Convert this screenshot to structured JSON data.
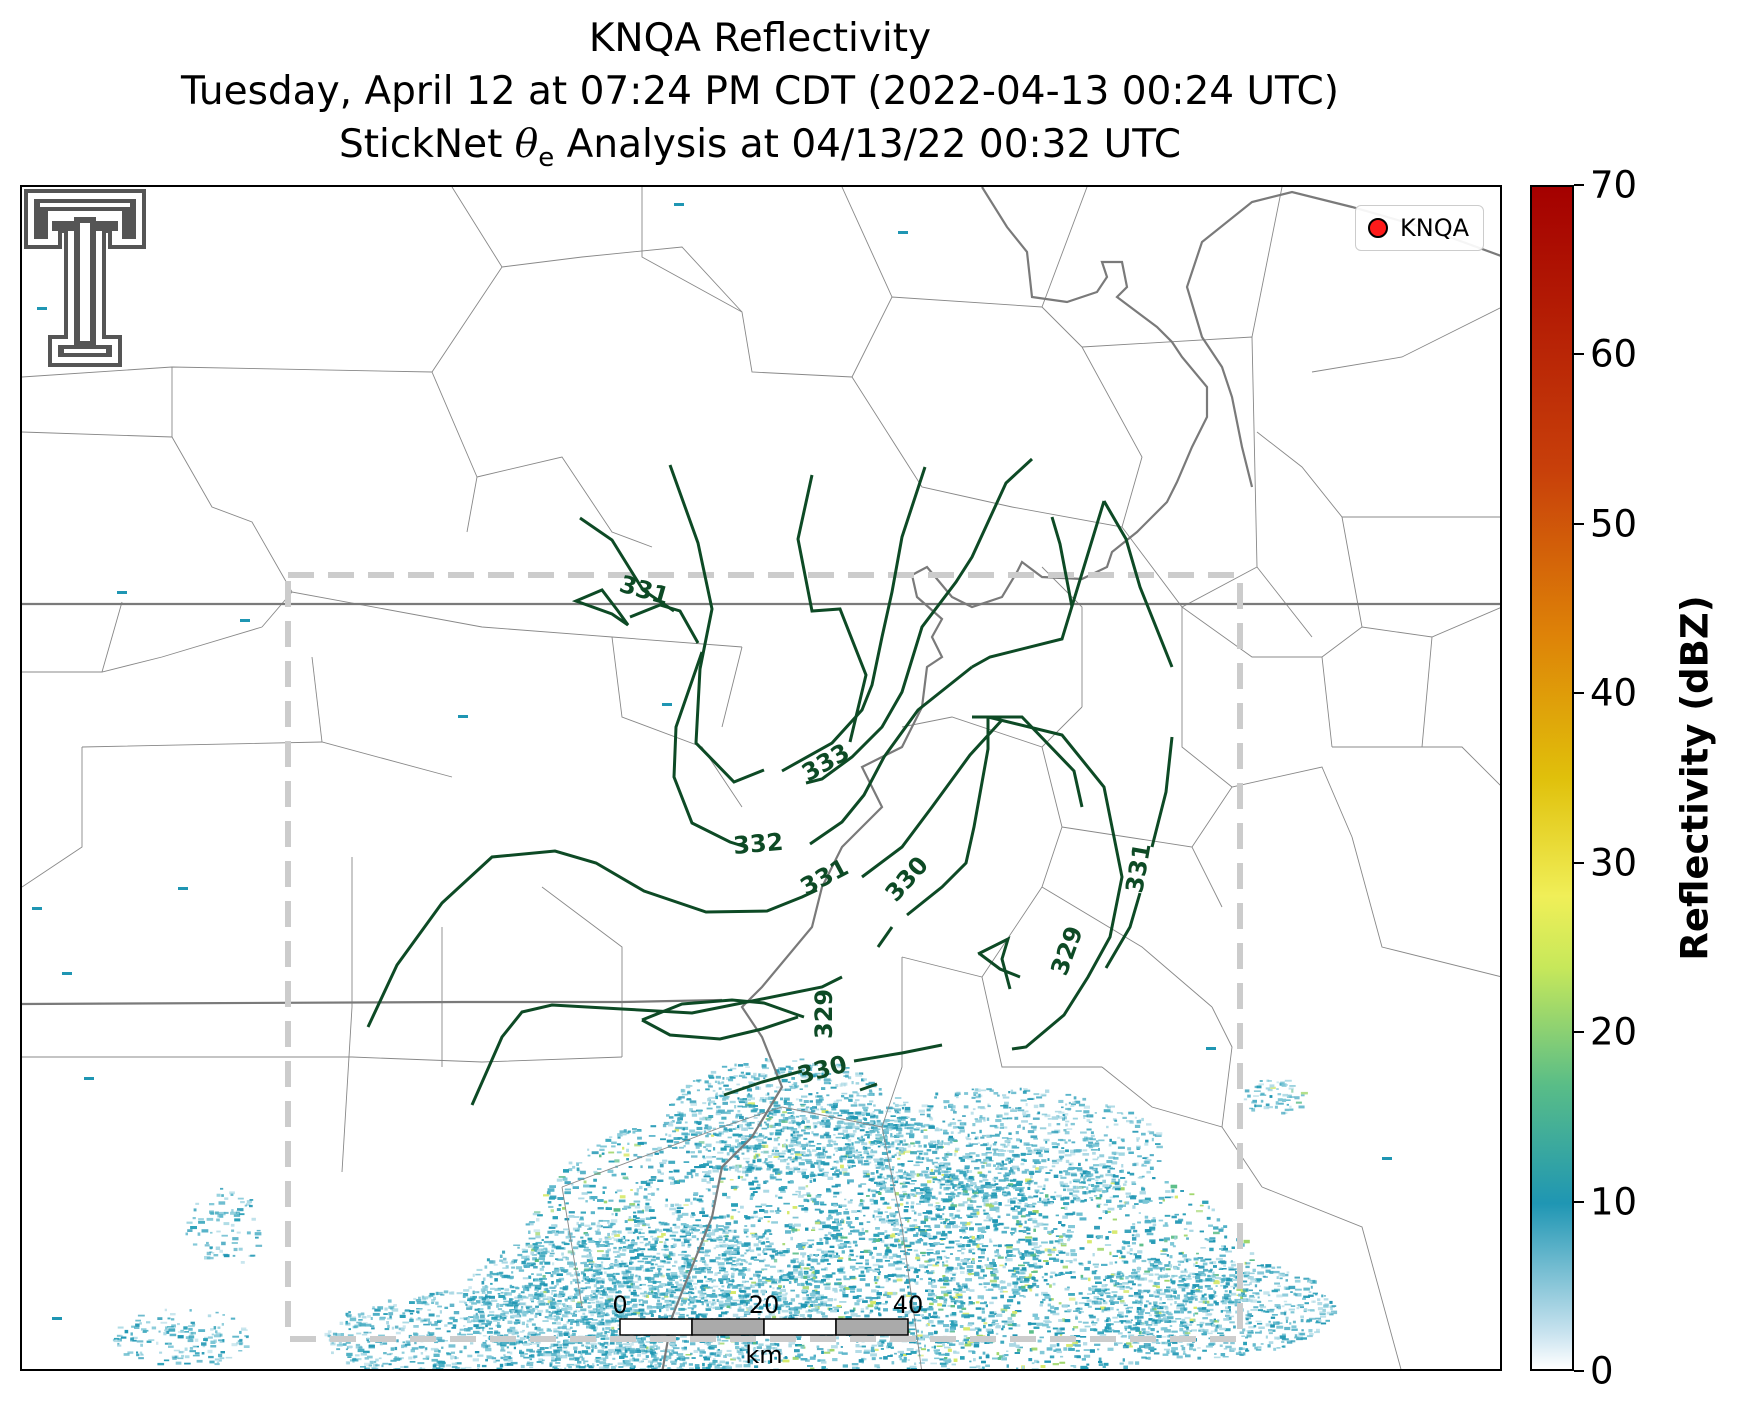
{
  "title": {
    "line1": "KNQA Reflectivity",
    "line2": "Tuesday, April 12 at 07:24 PM CDT (2022-04-13 00:24 UTC)",
    "line3_prefix": "StickNet",
    "line3_theta": "θ",
    "line3_sub": "e",
    "line3_suffix": "Analysis at 04/13/22 00:32 UTC"
  },
  "legend": {
    "label": "KNQA",
    "marker_color": "#ff1a1a"
  },
  "logo": {
    "name": "texas-tech-double-t-logo",
    "color": "#555555"
  },
  "contours": {
    "color": "#0d4a25",
    "labels": [
      "331",
      "333",
      "332",
      "331",
      "330",
      "329",
      "331",
      "329",
      "330"
    ]
  },
  "analysis_box": {
    "style": "dashed",
    "color": "#cccccc"
  },
  "scale_bar": {
    "ticks": [
      "0",
      "20",
      "40"
    ],
    "unit": "km"
  },
  "colorbar": {
    "title": "Reflectivity (dBZ)",
    "ticks": [
      "0",
      "10",
      "20",
      "30",
      "40",
      "50",
      "60",
      "70"
    ],
    "range": [
      0,
      70
    ],
    "colors": [
      "#ffffff",
      "#1f96b3",
      "#59bd87",
      "#c7e85a",
      "#e0c00b",
      "#de8308",
      "#c8400a",
      "#a40000"
    ]
  }
}
